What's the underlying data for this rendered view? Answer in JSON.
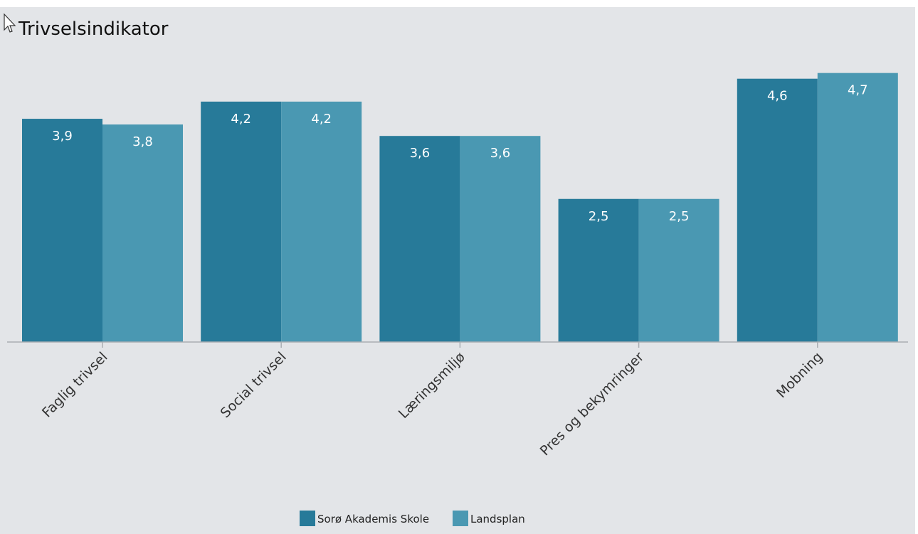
{
  "chart_data": {
    "type": "bar",
    "title": "Trivselsindikator",
    "xlabel": "",
    "ylabel": "",
    "ylim": [
      0,
      5
    ],
    "grid": false,
    "legend_position": "bottom-center",
    "categories": [
      "Faglig trivsel",
      "Social trivsel",
      "Læringsmiljø",
      "Pres og bekymringer",
      "Mobning"
    ],
    "series": [
      {
        "name": "Sorø Akademis Skole",
        "color": "#277a99",
        "values": [
          3.9,
          4.2,
          3.6,
          2.5,
          4.6
        ],
        "labels": [
          "3,9",
          "4,2",
          "3,6",
          "2,5",
          "4,6"
        ]
      },
      {
        "name": "Landsplan",
        "color": "#4a98b2",
        "values": [
          3.8,
          4.2,
          3.6,
          2.5,
          4.7
        ],
        "labels": [
          "3,8",
          "4,2",
          "3,6",
          "2,5",
          "4,7"
        ]
      }
    ]
  },
  "cursor_icon": "pointer-arrow-icon"
}
